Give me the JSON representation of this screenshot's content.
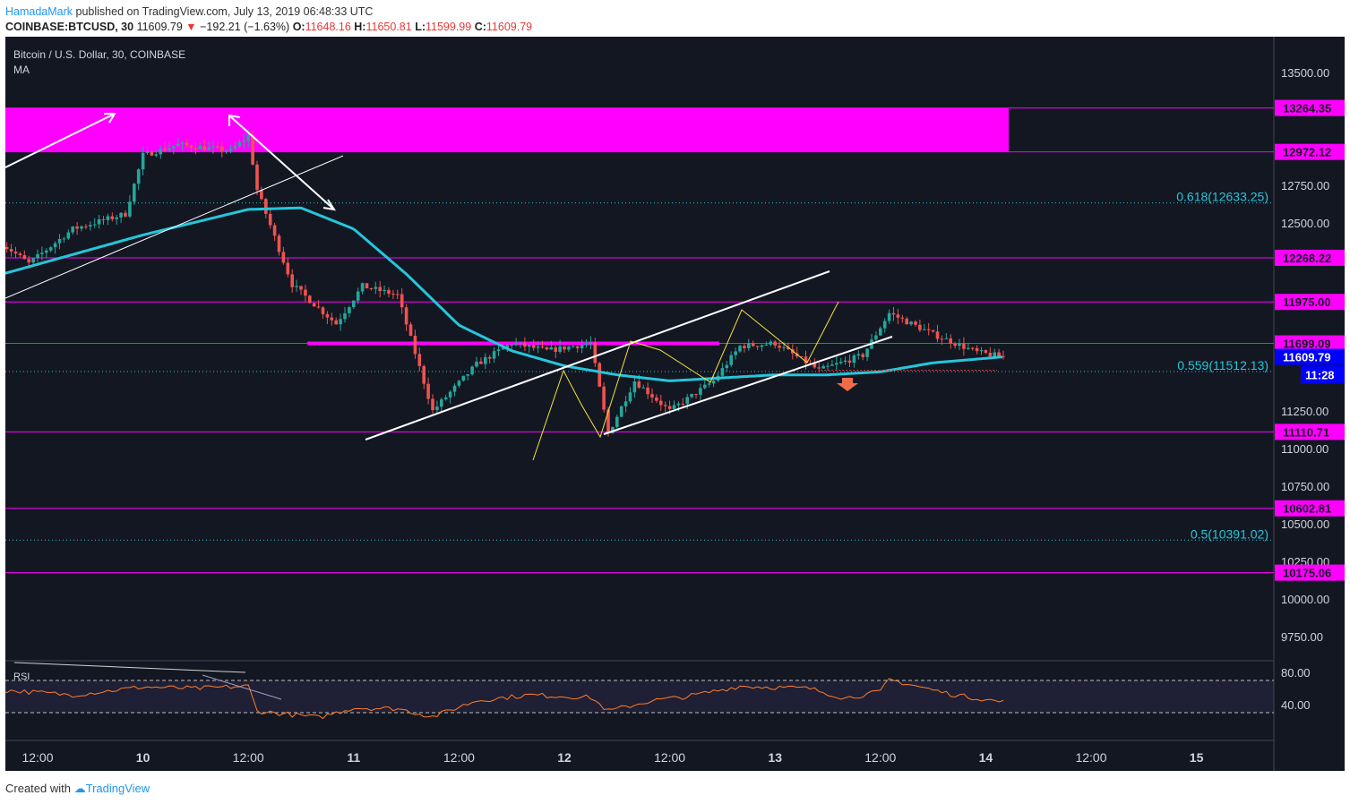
{
  "header": {
    "author": "HamadaMark",
    "published": "published on TradingView.com, July 13, 2019 06:48:33 UTC",
    "symbol": "COINBASE:BTCUSD, 30",
    "last": "11609.79",
    "change_arrow": "▼",
    "change": "−192.21 (−1.63%)",
    "open_label": "O:",
    "open": "11648.16",
    "high_label": "H:",
    "high": "11650.81",
    "low_label": "L:",
    "low": "11599.99",
    "close_label": "C:",
    "close": "11609.79"
  },
  "legend": {
    "title": "Bitcoin / U.S. Dollar, 30, COINBASE",
    "indicator": "MA",
    "rsi": "RSI"
  },
  "footer": {
    "created_with": "Created with",
    "brand": "TradingView"
  },
  "colors": {
    "background": "#131722",
    "zone": "#ff00ff",
    "ma": "#26c6da",
    "fib": "#26c6da",
    "up": "#26a69a",
    "down": "#ef5350",
    "rsi": "#ff7f27",
    "price_tag": "#0000ff"
  },
  "chart_data": {
    "type": "candlestick",
    "symbol": "BTCUSD",
    "exchange": "COINBASE",
    "interval": "30",
    "ylim": [
      9600,
      13700
    ],
    "y_ticks": [
      13500,
      12750,
      12500,
      11250,
      11000,
      10750,
      10500,
      10250,
      10000,
      9750
    ],
    "x_ticks": [
      "12:00",
      "10",
      "12:00",
      "11",
      "12:00",
      "12",
      "12:00",
      "13",
      "12:00",
      "14",
      "12:00",
      "15"
    ],
    "horizontal_levels": [
      13264.35,
      12972.12,
      12268.22,
      11975.0,
      11699.09,
      11110.71,
      10602.81,
      10175.06
    ],
    "resistance_zone": [
      12972.12,
      13264.35
    ],
    "fib_levels": [
      {
        "label": "0.618(12633.25)",
        "value": 12633.25
      },
      {
        "label": "0.559(11512.13)",
        "value": 11512.13
      },
      {
        "label": "0.5(10391.02)",
        "value": 10391.02
      }
    ],
    "last_price": 11609.79,
    "countdown": "11:28",
    "price_anchors": [
      {
        "t": "Jul 9 08:00",
        "p": 12360
      },
      {
        "t": "Jul 9 11:00",
        "p": 12230
      },
      {
        "t": "Jul 9 16:00",
        "p": 12460
      },
      {
        "t": "Jul 9 22:00",
        "p": 12560
      },
      {
        "t": "Jul 10 00:00",
        "p": 12950
      },
      {
        "t": "Jul 10 04:00",
        "p": 13020
      },
      {
        "t": "Jul 10 10:00",
        "p": 12980
      },
      {
        "t": "Jul 10 12:00",
        "p": 13080
      },
      {
        "t": "Jul 10 13:00",
        "p": 12720
      },
      {
        "t": "Jul 10 17:00",
        "p": 12090
      },
      {
        "t": "Jul 10 22:00",
        "p": 11830
      },
      {
        "t": "Jul 11 01:00",
        "p": 12080
      },
      {
        "t": "Jul 11 05:00",
        "p": 12020
      },
      {
        "t": "Jul 11 09:00",
        "p": 11250
      },
      {
        "t": "Jul 11 14:00",
        "p": 11560
      },
      {
        "t": "Jul 11 18:00",
        "p": 11700
      },
      {
        "t": "Jul 11 22:00",
        "p": 11650
      },
      {
        "t": "Jul 12 03:00",
        "p": 11700
      },
      {
        "t": "Jul 12 05:00",
        "p": 11100
      },
      {
        "t": "Jul 12 08:00",
        "p": 11450
      },
      {
        "t": "Jul 12 12:00",
        "p": 11250
      },
      {
        "t": "Jul 12 17:00",
        "p": 11450
      },
      {
        "t": "Jul 12 20:00",
        "p": 11680
      },
      {
        "t": "Jul 13 00:00",
        "p": 11700
      },
      {
        "t": "Jul 13 05:00",
        "p": 11520
      },
      {
        "t": "Jul 13 10:00",
        "p": 11620
      },
      {
        "t": "Jul 13 13:00",
        "p": 11900
      },
      {
        "t": "Jul 13 18:00",
        "p": 11760
      },
      {
        "t": "Jul 13 23:00",
        "p": 11640
      },
      {
        "t": "Jul 14 02:00",
        "p": 11609.79
      }
    ],
    "moving_average": [
      {
        "t": "Jul 9 08:00",
        "p": 12160
      },
      {
        "t": "Jul 10 00:00",
        "p": 12420
      },
      {
        "t": "Jul 10 12:00",
        "p": 12590
      },
      {
        "t": "Jul 10 18:00",
        "p": 12600
      },
      {
        "t": "Jul 11 00:00",
        "p": 12460
      },
      {
        "t": "Jul 11 06:00",
        "p": 12160
      },
      {
        "t": "Jul 11 12:00",
        "p": 11820
      },
      {
        "t": "Jul 11 18:00",
        "p": 11650
      },
      {
        "t": "Jul 12 00:00",
        "p": 11550
      },
      {
        "t": "Jul 12 06:00",
        "p": 11490
      },
      {
        "t": "Jul 12 12:00",
        "p": 11450
      },
      {
        "t": "Jul 12 18:00",
        "p": 11470
      },
      {
        "t": "Jul 13 00:00",
        "p": 11490
      },
      {
        "t": "Jul 13 06:00",
        "p": 11490
      },
      {
        "t": "Jul 13 12:00",
        "p": 11510
      },
      {
        "t": "Jul 13 18:00",
        "p": 11570
      },
      {
        "t": "Jul 14 02:00",
        "p": 11610
      }
    ],
    "rsi": {
      "ylim": [
        15,
        90
      ],
      "ticks": [
        80,
        40
      ],
      "levels": [
        70,
        30
      ],
      "anchors": [
        {
          "t": "Jul 9 08:00",
          "v": 58
        },
        {
          "t": "Jul 9 16:00",
          "v": 52
        },
        {
          "t": "Jul 10 00:00",
          "v": 62
        },
        {
          "t": "Jul 10 06:00",
          "v": 60
        },
        {
          "t": "Jul 10 12:00",
          "v": 63
        },
        {
          "t": "Jul 10 13:00",
          "v": 32
        },
        {
          "t": "Jul 10 20:00",
          "v": 24
        },
        {
          "t": "Jul 11 00:00",
          "v": 36
        },
        {
          "t": "Jul 11 05:00",
          "v": 35
        },
        {
          "t": "Jul 11 09:00",
          "v": 25
        },
        {
          "t": "Jul 11 14:00",
          "v": 45
        },
        {
          "t": "Jul 11 20:00",
          "v": 52
        },
        {
          "t": "Jul 12 03:00",
          "v": 49
        },
        {
          "t": "Jul 12 05:00",
          "v": 32
        },
        {
          "t": "Jul 12 10:00",
          "v": 45
        },
        {
          "t": "Jul 12 14:00",
          "v": 50
        },
        {
          "t": "Jul 12 20:00",
          "v": 63
        },
        {
          "t": "Jul 13 04:00",
          "v": 60
        },
        {
          "t": "Jul 13 08:00",
          "v": 48
        },
        {
          "t": "Jul 13 12:00",
          "v": 56
        },
        {
          "t": "Jul 13 13:00",
          "v": 71
        },
        {
          "t": "Jul 13 20:00",
          "v": 53
        },
        {
          "t": "Jul 14 02:00",
          "v": 43
        }
      ]
    }
  }
}
